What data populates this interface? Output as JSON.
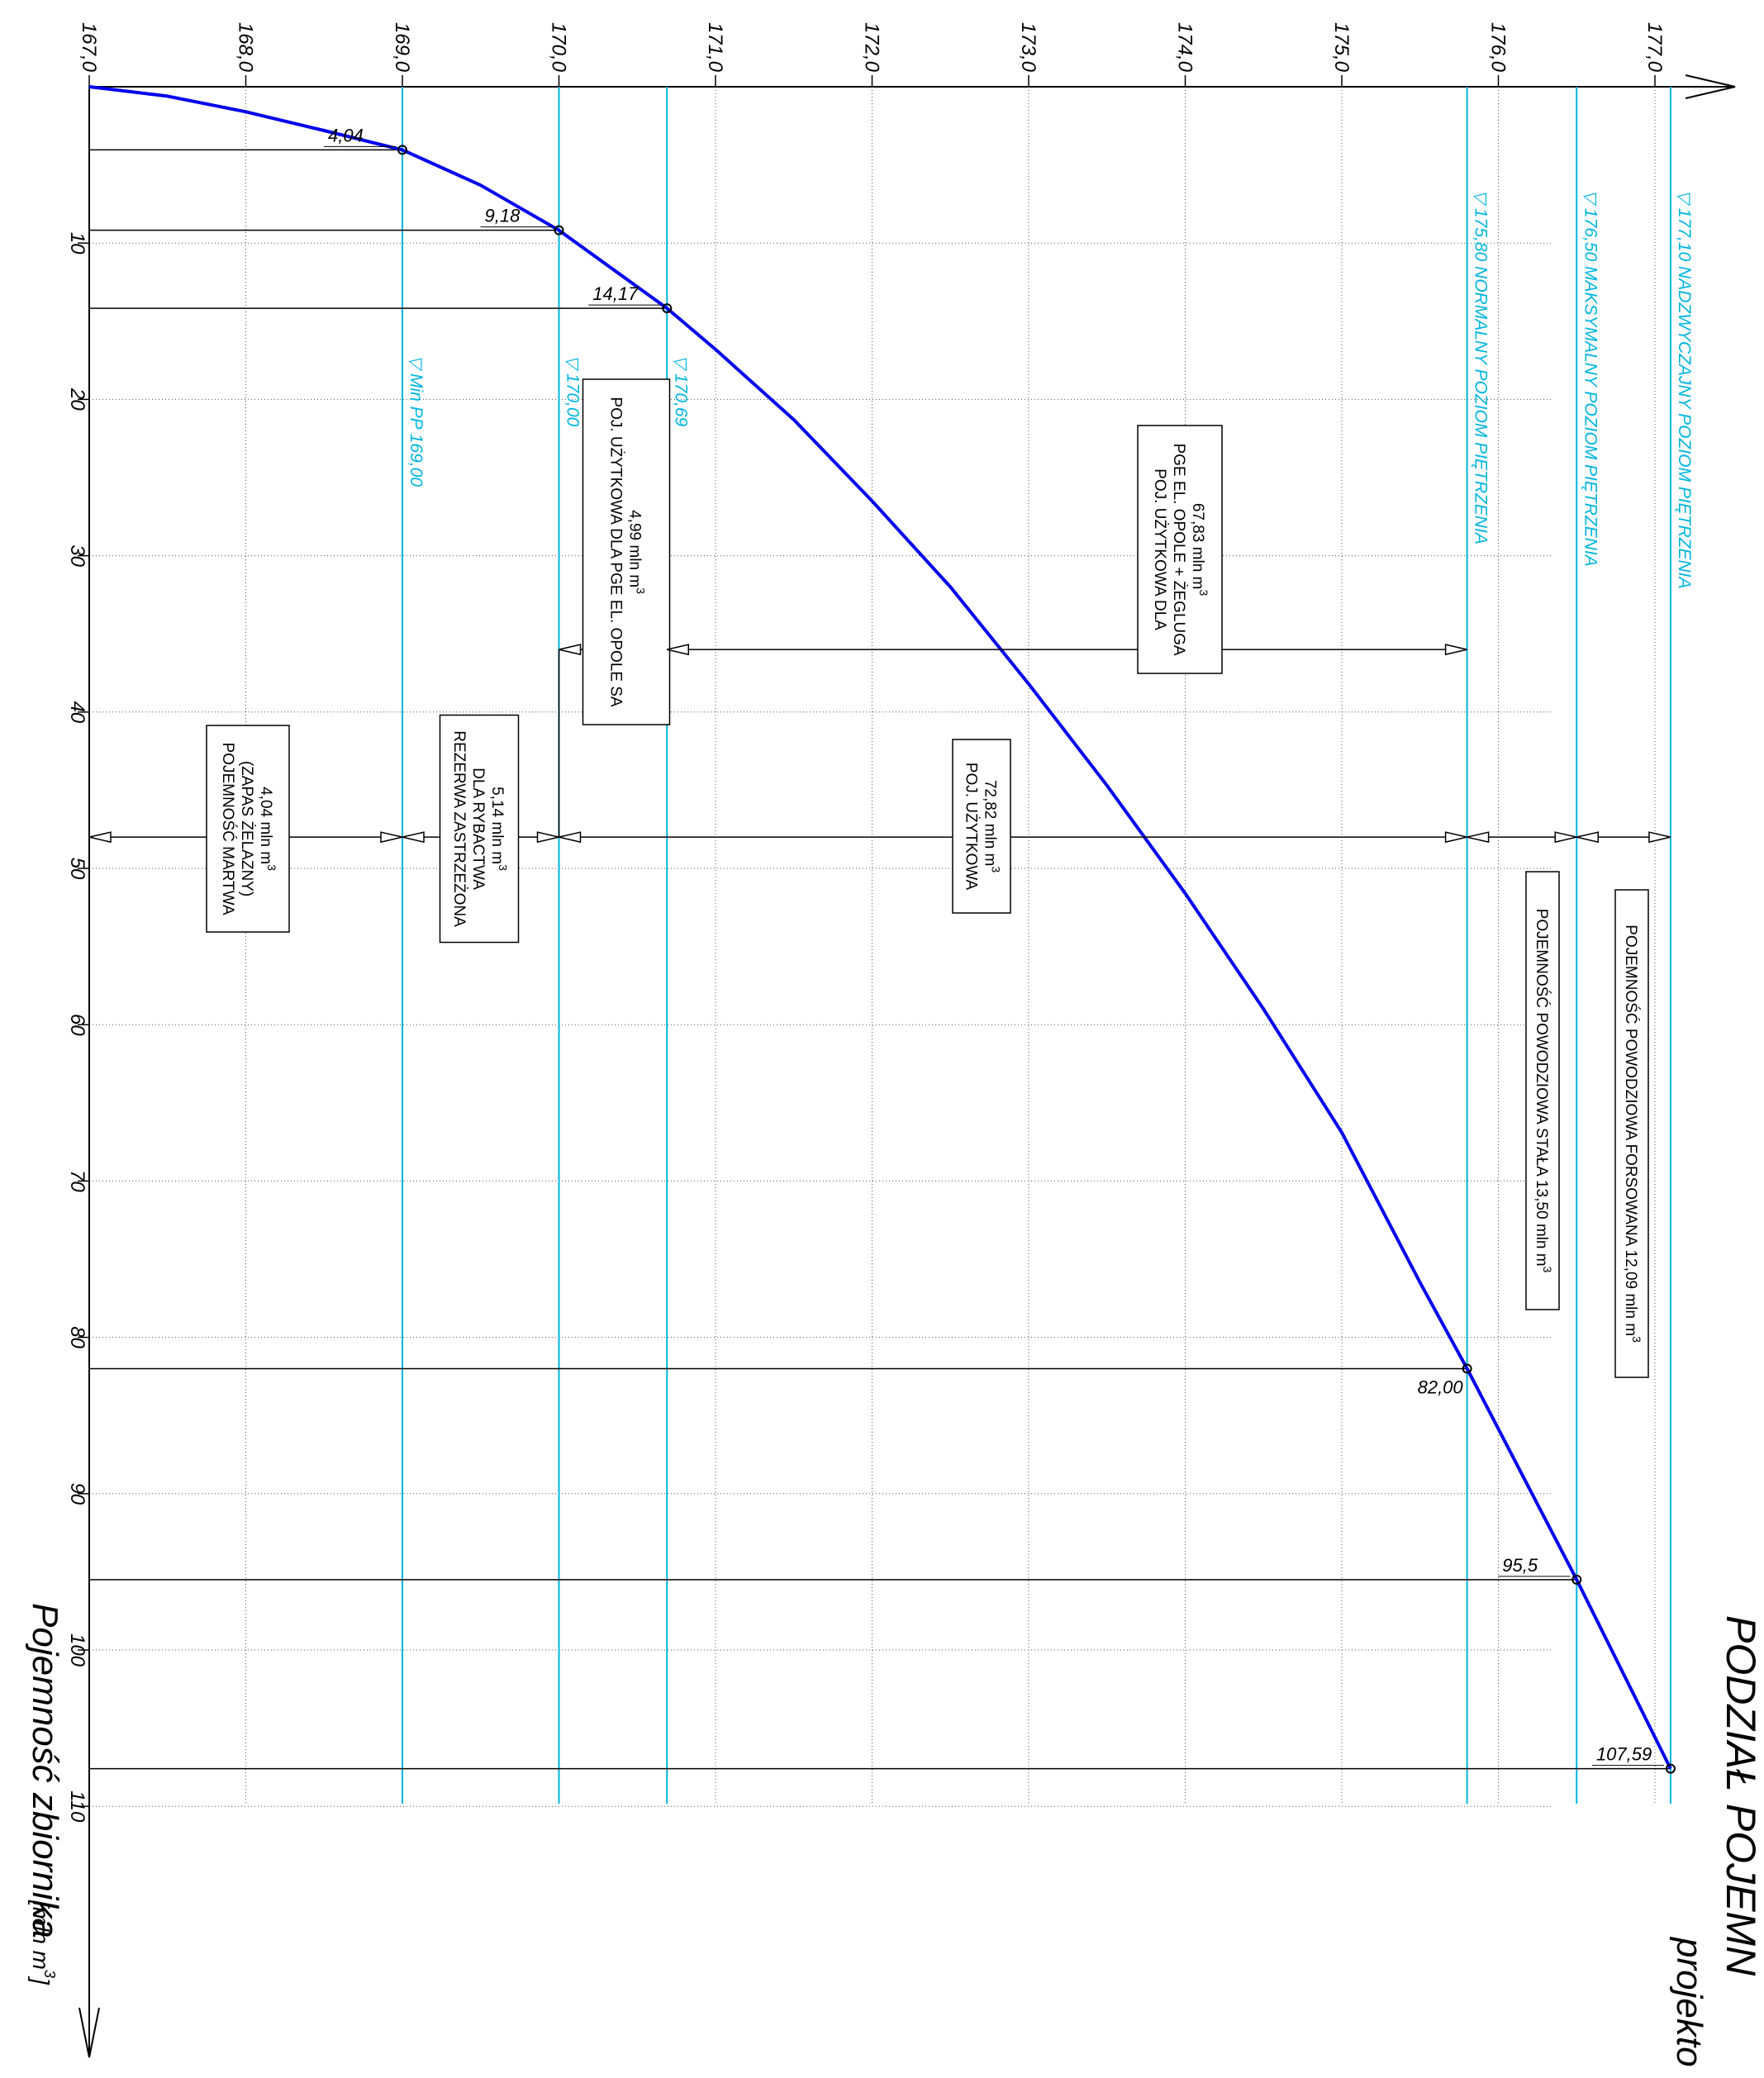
{
  "chart_data": {
    "type": "line",
    "title": "PODZIAŁ POJEMN",
    "subtitle": "projekto",
    "x_axis": {
      "label": "",
      "min": 167.0,
      "max": 177.0,
      "ticks": [
        "167,0",
        "168,0",
        "169,0",
        "170,0",
        "171,0",
        "172,0",
        "173,0",
        "174,0",
        "175,0",
        "176,0",
        "177,0"
      ]
    },
    "y_axis": {
      "label": "Pojemność zbiornika",
      "unit": "[mln m",
      "unit_sup": "3",
      "unit_close": "]",
      "min": 0,
      "max": 110,
      "ticks": [
        "10",
        "20",
        "30",
        "40",
        "50",
        "60",
        "70",
        "80",
        "90",
        "100",
        "110"
      ]
    },
    "grid": true,
    "curve_color": "#0000ee",
    "level_color": "#00b5e0",
    "series": [
      {
        "x": [
          167.0,
          167.5,
          168.0,
          168.5,
          169.0,
          169.5,
          170.0,
          170.69,
          171.0,
          171.5,
          172.0,
          172.5,
          173.0,
          173.5,
          174.0,
          174.5,
          175.0,
          175.5,
          175.8,
          176.5,
          177.1
        ],
        "y": [
          0,
          0.6,
          1.6,
          2.8,
          4.04,
          6.3,
          9.18,
          14.17,
          16.8,
          21.3,
          26.5,
          32.0,
          38.2,
          44.7,
          51.6,
          59.0,
          66.9,
          76.5,
          82.0,
          95.5,
          107.59
        ]
      }
    ],
    "points": [
      {
        "x": 169.0,
        "y": 4.04,
        "label": "4,04"
      },
      {
        "x": 170.0,
        "y": 9.18,
        "label": "9,18"
      },
      {
        "x": 170.69,
        "y": 14.17,
        "label": "14,17"
      },
      {
        "x": 175.8,
        "y": 82.0,
        "label": "82,00"
      },
      {
        "x": 176.5,
        "y": 95.5,
        "label": "95,5"
      },
      {
        "x": 177.1,
        "y": 107.59,
        "label": "107,59"
      }
    ],
    "levels": [
      {
        "x": 169.0,
        "label": "Min PP  169,00"
      },
      {
        "x": 170.0,
        "label": "170,00"
      },
      {
        "x": 170.69,
        "label": "170,69"
      },
      {
        "x": 175.8,
        "label": "175,80 NORMALNY POZIOM PIĘTRZENIA"
      },
      {
        "x": 176.5,
        "label": "176,50  MAKSYMALNY POZIOM PIĘTRZENIA"
      },
      {
        "x": 177.1,
        "label": "177,10  NADZWYCZAJNY POZIOM PIĘTRZENIA"
      }
    ],
    "level_marker": "▽",
    "zones": [
      {
        "from": 167.0,
        "to": 169.0,
        "row": 48,
        "lines": [
          "POJEMNOŚĆ  MARTWA",
          "(ZAPAS ŻELAZNY)",
          "4,04 mln m"
        ],
        "sup": "3"
      },
      {
        "from": 169.0,
        "to": 170.0,
        "row": 48,
        "lines": [
          "REZERWA  ZASTRZEŻONA",
          "DLA  RYBACTWA",
          "5,14 mln m"
        ],
        "sup": "3"
      },
      {
        "from": 170.0,
        "to": 175.8,
        "row": 48,
        "lines": [
          "POJ.  UŻYTKOWA",
          "72,82 mln m"
        ],
        "sup": "3"
      },
      {
        "from": 170.0,
        "to": 170.69,
        "row": 36,
        "lines": [
          "POJ. UŻYTKOWA DLA PGE EL. OPOLE SA",
          "4,99 mln m"
        ],
        "sup": "3"
      },
      {
        "from": 170.69,
        "to": 175.8,
        "row": 36,
        "lines": [
          "POJ. UŻYTKOWA DLA",
          "PGE EL. OPOLE + ŻEGLUGA",
          "67,83 mln m"
        ],
        "sup": "3"
      },
      {
        "from": 175.8,
        "to": 176.5,
        "row": 48,
        "lines": [
          "POJEMNOŚĆ POWODZIOWA STAŁA  13,50 mln m"
        ],
        "sup": "3"
      },
      {
        "from": 176.5,
        "to": 177.1,
        "row": 48,
        "lines": [
          "POJEMNOŚĆ POWODZIOWA FORSOWANA  12,09 mln m"
        ],
        "sup": "3"
      }
    ]
  }
}
